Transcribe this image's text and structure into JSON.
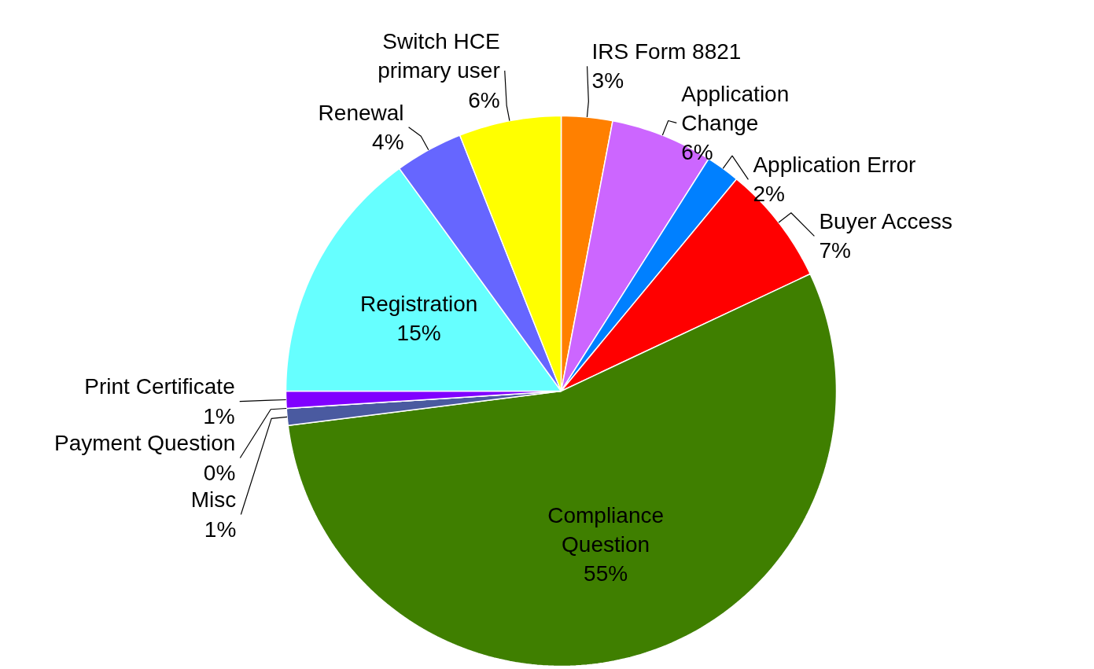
{
  "chart_data": {
    "type": "pie",
    "categories": [
      "IRS Form 8821",
      "Application Change",
      "Application Error",
      "Buyer Access",
      "Compliance Question",
      "Misc",
      "Payment Question",
      "Print Certificate",
      "Registration",
      "Renewal",
      "Switch HCE primary user"
    ],
    "values": [
      3,
      6,
      2,
      7,
      55,
      1,
      0,
      1,
      15,
      4,
      6
    ],
    "value_labels": [
      "3%",
      "6%",
      "2%",
      "7%",
      "55%",
      "1%",
      "0%",
      "1%",
      "15%",
      "4%",
      "6%"
    ],
    "colors": [
      "#ff8000",
      "#cc66ff",
      "#0080ff",
      "#ff0000",
      "#3f7f00",
      "#4a5aa0",
      "#dde6f0",
      "#8000ff",
      "#66ffff",
      "#6666ff",
      "#ffff00"
    ]
  }
}
